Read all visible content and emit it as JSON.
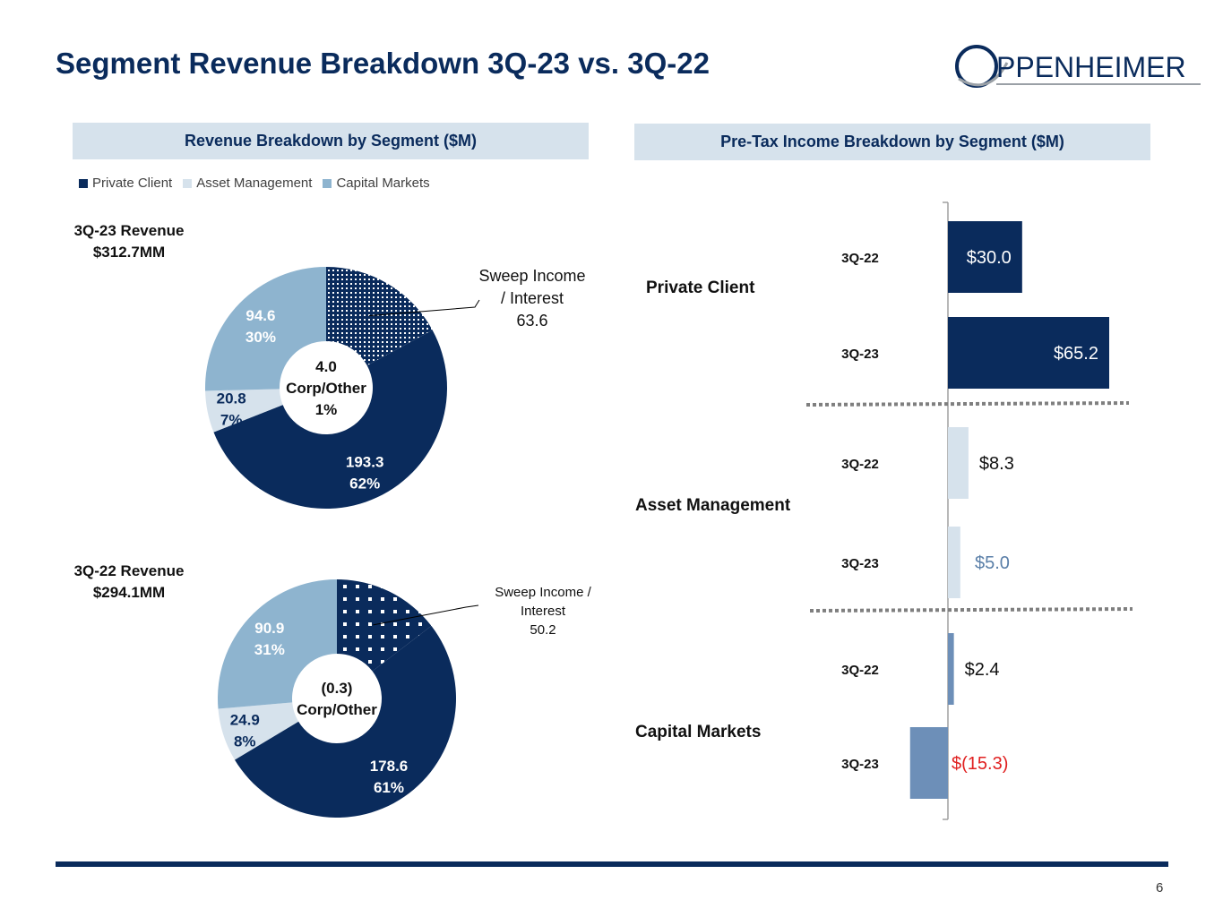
{
  "page": {
    "title": "Segment Revenue Breakdown 3Q-23 vs. 3Q-22",
    "logo_text": "PPENHEIMER",
    "page_number": "6"
  },
  "colors": {
    "title": "#0a2b5c",
    "private_client": "#0a2b5c",
    "asset_management": "#d6e2ec",
    "capital_markets": "#8eb4cf",
    "capital_markets_bar": "#6d8fb8",
    "negative_label": "#e02020",
    "header_fill": "#d6e2ec"
  },
  "left_panel": {
    "header": "Revenue Breakdown by Segment ($M)",
    "legend": [
      "Private Client",
      "Asset Management",
      "Capital Markets"
    ]
  },
  "right_panel": {
    "header": "Pre-Tax Income Breakdown by Segment ($M)"
  },
  "chart_data": [
    {
      "type": "pie",
      "subtype": "donut",
      "title_line1": "3Q-23 Revenue",
      "title_line2": "$312.7MM",
      "slices": [
        {
          "name": "Sweep Income / Interest",
          "value": 63.6,
          "label_lines": [
            "Sweep Income",
            "/ Interest",
            "63.6"
          ],
          "pattern": "dots"
        },
        {
          "name": "Private Client",
          "value": 193.3,
          "label_value": "193.3",
          "label_pct": "62%"
        },
        {
          "name": "Asset Management",
          "value": 20.8,
          "label_value": "20.8",
          "label_pct": "7%"
        },
        {
          "name": "Capital Markets",
          "value": 94.6,
          "label_value": "94.6",
          "label_pct": "30%"
        }
      ],
      "center_label": [
        "4.0",
        "Corp/Other",
        "1%"
      ]
    },
    {
      "type": "pie",
      "subtype": "donut",
      "title_line1": "3Q-22 Revenue",
      "title_line2": "$294.1MM",
      "slices": [
        {
          "name": "Sweep Income / Interest",
          "value": 50.2,
          "label_lines": [
            "Sweep Income /",
            "Interest",
            "50.2"
          ],
          "pattern": "dots"
        },
        {
          "name": "Private Client",
          "value": 178.6,
          "label_value": "178.6",
          "label_pct": "61%"
        },
        {
          "name": "Asset Management",
          "value": 24.9,
          "label_value": "24.9",
          "label_pct": "8%"
        },
        {
          "name": "Capital Markets",
          "value": 90.9,
          "label_value": "90.9",
          "label_pct": "31%"
        }
      ],
      "center_label": [
        "(0.3)",
        "Corp/Other"
      ]
    },
    {
      "type": "bar",
      "orientation": "horizontal",
      "title": "Pre-Tax Income Breakdown by Segment ($M)",
      "groups": [
        {
          "segment": "Private Client",
          "bars": [
            {
              "period": "3Q-22",
              "value": 30.0,
              "label": "$30.0"
            },
            {
              "period": "3Q-23",
              "value": 65.2,
              "label": "$65.2"
            }
          ]
        },
        {
          "segment": "Asset Management",
          "bars": [
            {
              "period": "3Q-22",
              "value": 8.3,
              "label": "$8.3"
            },
            {
              "period": "3Q-23",
              "value": 5.0,
              "label": "$5.0"
            }
          ]
        },
        {
          "segment": "Capital Markets",
          "bars": [
            {
              "period": "3Q-22",
              "value": 2.4,
              "label": "$2.4"
            },
            {
              "period": "3Q-23",
              "value": -15.3,
              "label": "$(15.3)"
            }
          ]
        }
      ]
    }
  ]
}
